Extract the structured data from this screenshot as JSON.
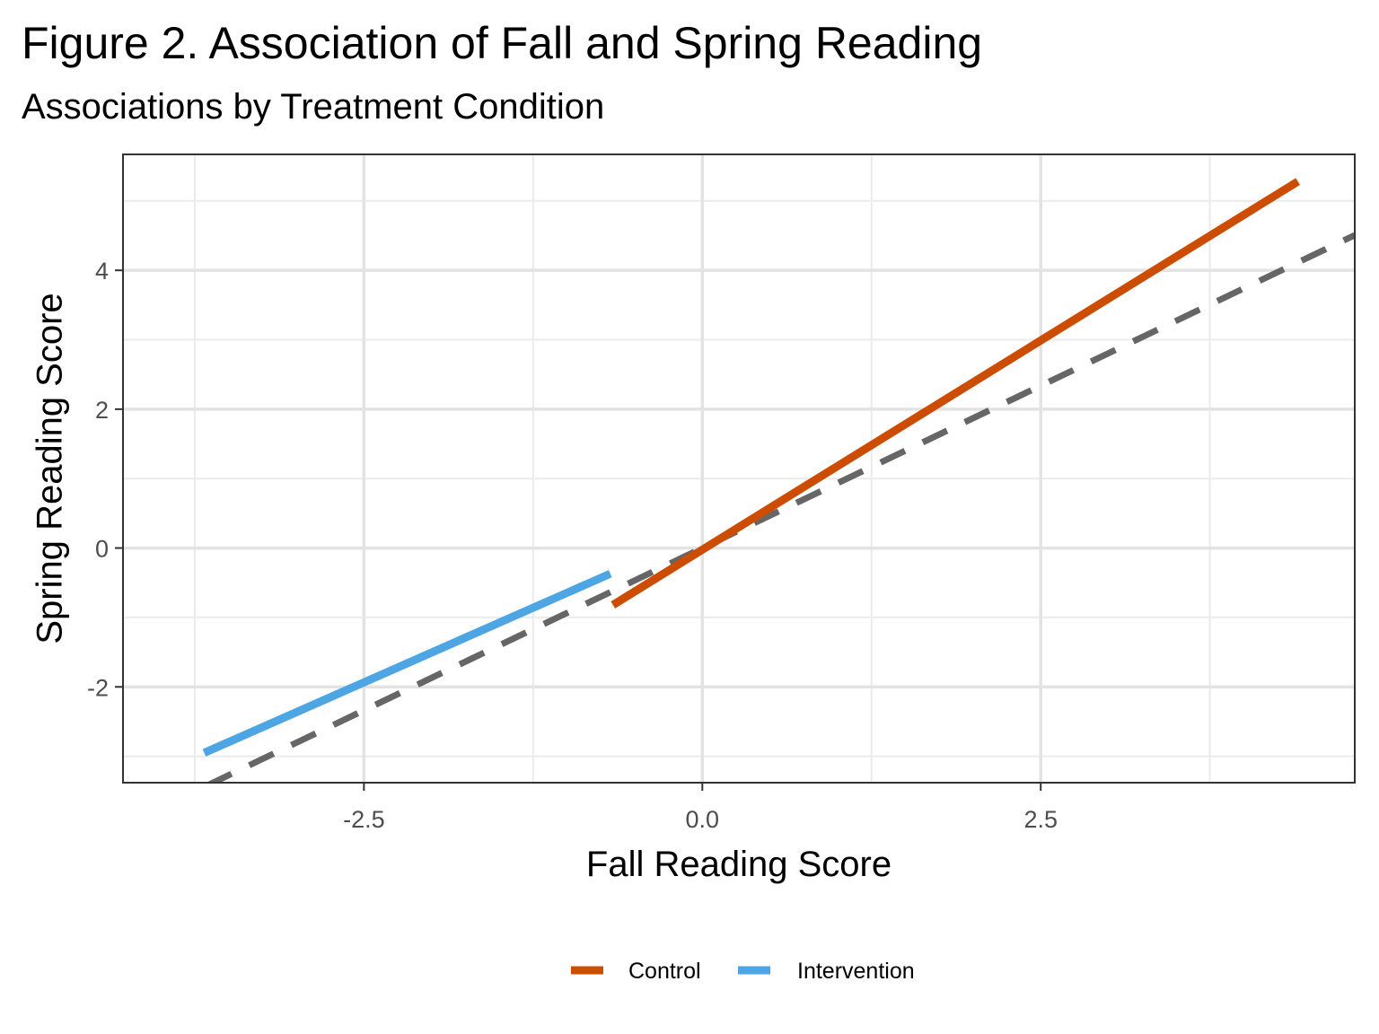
{
  "chart_data": {
    "type": "line",
    "title": "Figure 2. Association of Fall and Spring Reading",
    "subtitle": "Associations by Treatment Condition",
    "xlabel": "Fall Reading Score",
    "ylabel": "Spring Reading Score",
    "xlim": [
      -4.28,
      4.82
    ],
    "ylim": [
      -3.38,
      5.67
    ],
    "x_ticks": [
      -2.5,
      0.0,
      2.5
    ],
    "x_tick_labels": [
      "-2.5",
      "0.0",
      "2.5"
    ],
    "y_ticks": [
      -2,
      0,
      2,
      4
    ],
    "y_tick_labels": [
      "-2",
      "0",
      "2",
      "4"
    ],
    "grid": true,
    "legend_position": "bottom",
    "series": [
      {
        "name": "Control",
        "color": "#CC4C02",
        "style": "solid",
        "x": [
          -0.66,
          4.4
        ],
        "y": [
          -0.82,
          5.28
        ]
      },
      {
        "name": "Intervention",
        "color": "#4EA5E3",
        "style": "solid",
        "x": [
          -3.68,
          -0.68
        ],
        "y": [
          -2.95,
          -0.37
        ]
      }
    ],
    "reference_line": {
      "color": "#666666",
      "style": "dashed",
      "slope": 0.935,
      "intercept": 0
    }
  }
}
